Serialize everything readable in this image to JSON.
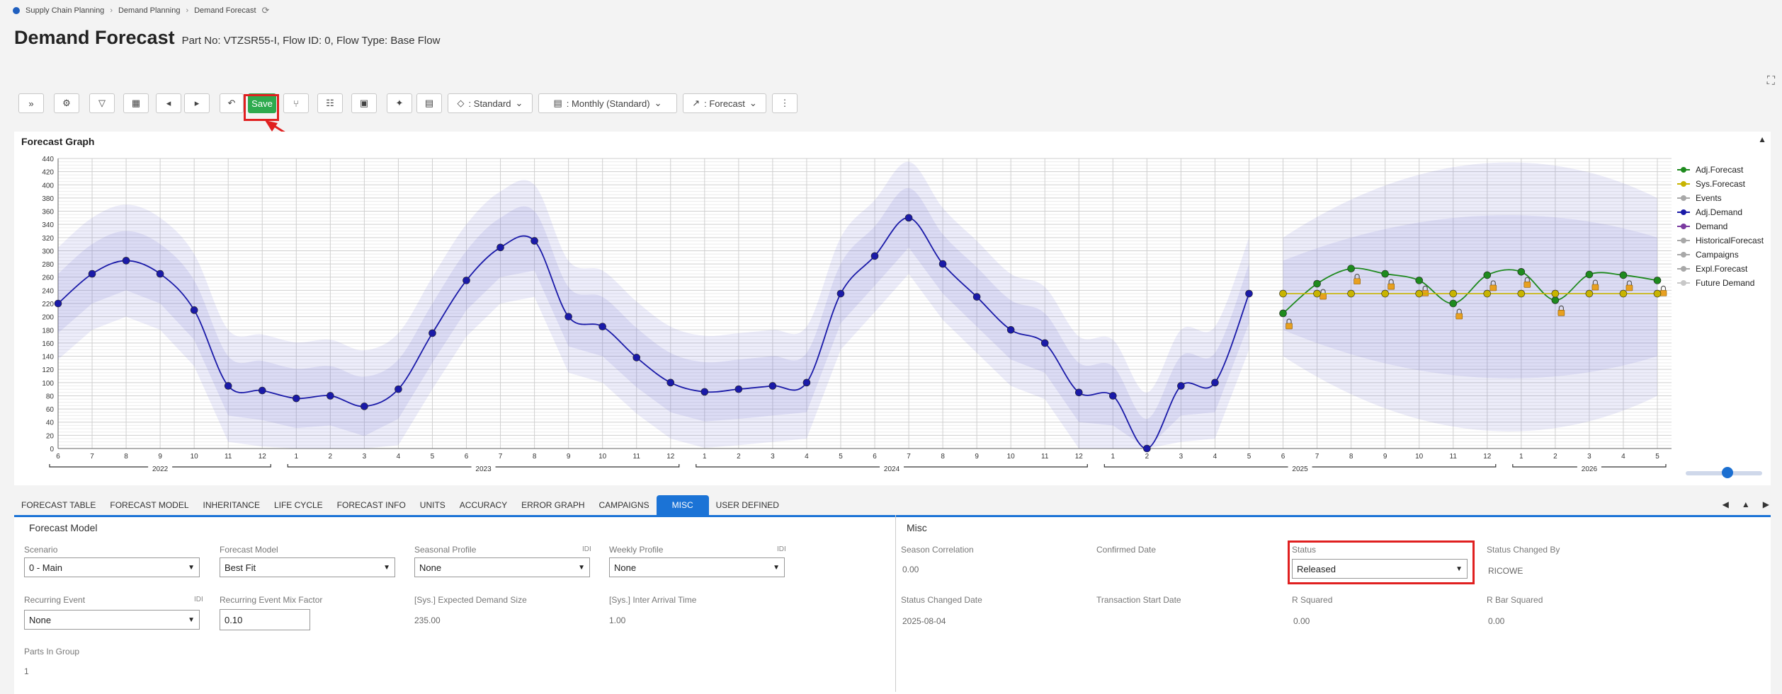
{
  "breadcrumb": {
    "items": [
      "Supply Chain Planning",
      "Demand Planning",
      "Demand Forecast"
    ]
  },
  "header": {
    "title": "Demand Forecast",
    "subtitle": "Part No: VTZSR55-I, Flow ID: 0, Flow Type: Base Flow"
  },
  "toolbar": {
    "save_label": "Save",
    "view_label": ": Standard",
    "period_label": ": Monthly (Standard)",
    "mode_label": ": Forecast"
  },
  "graph": {
    "title": "Forecast Graph",
    "legend": [
      {
        "label": "Adj.Forecast",
        "color": "#1e8a1e"
      },
      {
        "label": "Sys.Forecast",
        "color": "#c8b400"
      },
      {
        "label": "Events",
        "color": "#a8a8a8"
      },
      {
        "label": "Adj.Demand",
        "color": "#1a1aa8"
      },
      {
        "label": "Demand",
        "color": "#7a3aa0"
      },
      {
        "label": "HistoricalForecast",
        "color": "#a8a8a8"
      },
      {
        "label": "Campaigns",
        "color": "#a8a8a8"
      },
      {
        "label": "Expl.Forecast",
        "color": "#a8a8a8"
      },
      {
        "label": "Future Demand",
        "color": "#c8c8c8"
      }
    ]
  },
  "chart_data": {
    "type": "line",
    "ylim": [
      0,
      440
    ],
    "yticks": [
      0,
      20,
      40,
      60,
      80,
      100,
      120,
      140,
      160,
      180,
      200,
      220,
      240,
      260,
      280,
      300,
      320,
      340,
      360,
      380,
      400,
      420,
      440
    ],
    "months": [
      "6",
      "7",
      "8",
      "9",
      "10",
      "11",
      "12",
      "1",
      "2",
      "3",
      "4",
      "5",
      "6",
      "7",
      "8",
      "9",
      "10",
      "11",
      "12",
      "1",
      "2",
      "3",
      "4",
      "5",
      "6",
      "7",
      "8",
      "9",
      "10",
      "11",
      "12",
      "1",
      "2",
      "3",
      "4",
      "5",
      "6",
      "7",
      "8",
      "9",
      "10",
      "11",
      "12",
      "1",
      "2",
      "3",
      "4",
      "5"
    ],
    "years": [
      {
        "label": "2022",
        "from": 0,
        "to": 6
      },
      {
        "label": "2023",
        "from": 7,
        "to": 18
      },
      {
        "label": "2024",
        "from": 19,
        "to": 30
      },
      {
        "label": "2025",
        "from": 31,
        "to": 42
      },
      {
        "label": "2026",
        "from": 43,
        "to": 47
      }
    ],
    "series": [
      {
        "name": "Adj.Demand",
        "color": "#1a1aa8",
        "start": 0,
        "values": [
          220,
          265,
          285,
          265,
          210,
          95,
          88,
          76,
          80,
          64,
          90,
          175,
          255,
          305,
          315,
          200,
          185,
          138,
          100,
          86,
          90,
          95,
          100,
          235,
          292,
          350,
          280,
          230,
          180,
          160,
          85,
          80,
          0,
          95,
          100,
          235
        ]
      },
      {
        "name": "Adj.Forecast",
        "color": "#1e8a1e",
        "start": 36,
        "values": [
          205,
          250,
          273,
          265,
          255,
          220,
          263,
          268,
          225,
          264,
          263,
          255
        ]
      },
      {
        "name": "Sys.Forecast",
        "color": "#c8b400",
        "start": 36,
        "values": [
          235,
          235,
          235,
          235,
          235,
          235,
          235,
          235,
          235,
          235,
          235,
          235
        ]
      }
    ]
  },
  "tabs": [
    {
      "label": "FORECAST TABLE"
    },
    {
      "label": "FORECAST MODEL"
    },
    {
      "label": "INHERITANCE"
    },
    {
      "label": "LIFE CYCLE"
    },
    {
      "label": "FORECAST INFO"
    },
    {
      "label": "UNITS"
    },
    {
      "label": "ACCURACY"
    },
    {
      "label": "ERROR GRAPH"
    },
    {
      "label": "CAMPAIGNS"
    },
    {
      "label": "MISC"
    },
    {
      "label": "USER DEFINED"
    }
  ],
  "forecast_model": {
    "section_title": "Forecast Model",
    "scenario_label": "Scenario",
    "scenario_value": "0 - Main",
    "model_label": "Forecast Model",
    "model_value": "Best Fit",
    "seasonal_label": "Seasonal Profile",
    "seasonal_value": "None",
    "weekly_label": "Weekly Profile",
    "weekly_value": "None",
    "recurring_label": "Recurring Event",
    "recurring_value": "None",
    "mix_label": "Recurring Event Mix Factor",
    "mix_value": "0.10",
    "expected_label": "[Sys.] Expected Demand Size",
    "expected_value": "235.00",
    "arrival_label": "[Sys.] Inter Arrival Time",
    "arrival_value": "1.00",
    "parts_label": "Parts In Group",
    "parts_value": "1",
    "idi": "IDI"
  },
  "misc": {
    "section_title": "Misc",
    "season_corr_label": "Season Correlation",
    "season_corr_value": "0.00",
    "confirmed_label": "Confirmed Date",
    "status_label": "Status",
    "status_value": "Released",
    "changed_by_label": "Status Changed By",
    "changed_by_value": "RICOWE",
    "changed_date_label": "Status Changed Date",
    "changed_date_value": "2025-08-04",
    "trans_start_label": "Transaction Start Date",
    "r2_label": "R Squared",
    "r2_value": "0.00",
    "rbar_label": "R Bar Squared",
    "rbar_value": "0.00"
  }
}
